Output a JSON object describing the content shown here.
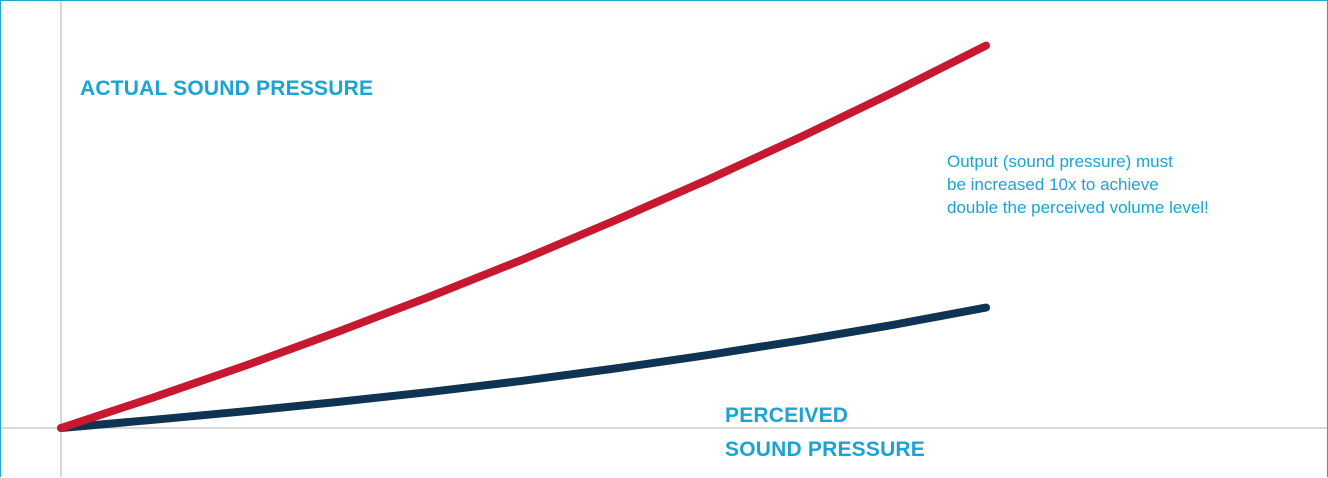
{
  "chart_data": {
    "type": "line",
    "x": [
      0,
      1,
      2,
      3,
      4,
      5,
      6,
      7,
      8,
      9,
      10
    ],
    "series": [
      {
        "name": "ACTUAL SOUND PRESSURE",
        "color": "#c8182f",
        "values": [
          0,
          8.2,
          16.8,
          25.9,
          35.4,
          45.3,
          55.8,
          66.7,
          78.1,
          90.1,
          102.6
        ]
      },
      {
        "name": "PERCEIVED SOUND PRESSURE",
        "color": "#0f3353",
        "values": [
          0,
          2.2,
          4.5,
          7.0,
          9.7,
          12.7,
          16.0,
          19.6,
          23.5,
          27.7,
          32.3
        ]
      }
    ],
    "xlim": [
      0,
      10
    ],
    "ylim": [
      0,
      110
    ],
    "grid": false,
    "annotation": [
      "Output (sound pressure) must",
      "be increased 10x to achieve",
      "double the perceived volume level!"
    ]
  },
  "labels": {
    "actual": "ACTUAL SOUND PRESSURE",
    "perceived_line1": "PERCEIVED",
    "perceived_line2": "SOUND PRESSURE"
  },
  "colors": {
    "axis": "#c9ccd0",
    "frame": "#22a6cf",
    "text": "#1aa3d6"
  }
}
